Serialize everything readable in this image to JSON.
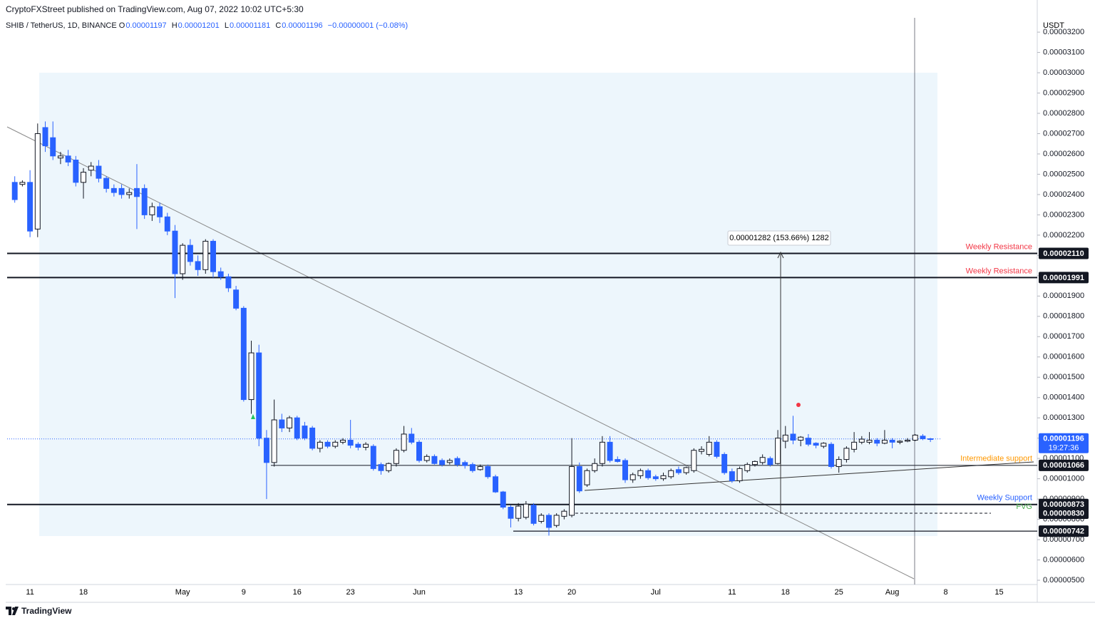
{
  "header": {
    "publisher": "CryptoFXStreet published on TradingView.com, Aug 07, 2022 10:02 UTC+5:30",
    "symbol": "SHIB / TetherUS, 1D, BINANCE",
    "ohlc": [
      {
        "key": "O",
        "value": "0.00001197"
      },
      {
        "key": "H",
        "value": "0.00001201"
      },
      {
        "key": "L",
        "value": "0.00001181"
      },
      {
        "key": "C",
        "value": "0.00001196"
      }
    ],
    "change": "−0.00000001 (−0.08%)"
  },
  "footer": "TradingView",
  "chart_data": {
    "type": "candlestick",
    "currency": "USDT",
    "categories": [
      null,
      null,
      "11",
      null,
      null,
      null,
      null,
      null,
      null,
      "18",
      null,
      null,
      null,
      null,
      null,
      null,
      null,
      null,
      null,
      null,
      null,
      null,
      "May",
      null,
      null,
      null,
      null,
      null,
      null,
      null,
      "9",
      null,
      null,
      null,
      null,
      null,
      null,
      "16",
      null,
      null,
      null,
      null,
      null,
      null,
      "23",
      null,
      null,
      null,
      null,
      null,
      null,
      null,
      null,
      "Jun",
      null,
      null,
      null,
      null,
      null,
      null,
      null,
      null,
      null,
      null,
      null,
      null,
      "13",
      null,
      null,
      null,
      null,
      null,
      null,
      "20",
      null,
      null,
      null,
      null,
      null,
      null,
      null,
      null,
      null,
      null,
      "Jul",
      null,
      null,
      null,
      null,
      null,
      null,
      null,
      null,
      null,
      "11",
      null,
      null,
      null,
      null,
      null,
      null,
      "18",
      null,
      null,
      null,
      null,
      null,
      null,
      "25",
      null,
      null,
      null,
      null,
      null,
      null,
      "Aug",
      null,
      null,
      null,
      null,
      null,
      null,
      "8",
      null,
      null,
      null,
      null,
      null,
      null,
      "15",
      null,
      null,
      null
    ],
    "ohlc": [
      [
        2.46e-05,
        2.49e-05,
        2.36e-05,
        2.375e-05
      ],
      [
        2.45e-05,
        2.47e-05,
        2.44e-05,
        2.46e-05
      ],
      [
        2.46e-05,
        2.52e-05,
        2.19e-05,
        2.22e-05
      ],
      [
        2.23e-05,
        2.75e-05,
        2.19e-05,
        2.7e-05
      ],
      [
        2.73e-05,
        2.76e-05,
        2.61e-05,
        2.64e-05
      ],
      [
        2.68e-05,
        2.76e-05,
        2.57e-05,
        2.59e-05
      ],
      [
        2.58e-05,
        2.61e-05,
        2.55e-05,
        2.59e-05
      ],
      [
        2.59e-05,
        2.62e-05,
        2.54e-05,
        2.56e-05
      ],
      [
        2.57e-05,
        2.59e-05,
        2.44e-05,
        2.46e-05
      ],
      [
        2.46e-05,
        2.53e-05,
        2.38e-05,
        2.51e-05
      ],
      [
        2.52e-05,
        2.56e-05,
        2.49e-05,
        2.54e-05
      ],
      [
        2.54e-05,
        2.57e-05,
        2.46e-05,
        2.48e-05
      ],
      [
        2.48e-05,
        2.49e-05,
        2.41e-05,
        2.43e-05
      ],
      [
        2.43e-05,
        2.45e-05,
        2.39e-05,
        2.41e-05
      ],
      [
        2.43e-05,
        2.45e-05,
        2.38e-05,
        2.4e-05
      ],
      [
        2.4e-05,
        2.43e-05,
        2.38e-05,
        2.41e-05
      ],
      [
        2.43e-05,
        2.55e-05,
        2.23e-05,
        2.39e-05
      ],
      [
        2.43e-05,
        2.45e-05,
        2.28e-05,
        2.3e-05
      ],
      [
        2.3e-05,
        2.36e-05,
        2.27e-05,
        2.34e-05
      ],
      [
        2.34e-05,
        2.36e-05,
        2.26e-05,
        2.29e-05
      ],
      [
        2.29e-05,
        2.31e-05,
        2.2e-05,
        2.22e-05
      ],
      [
        2.22e-05,
        2.25e-05,
        1.89e-05,
        2.01e-05
      ],
      [
        2.01e-05,
        2.16e-05,
        1.98e-05,
        2.15e-05
      ],
      [
        2.15e-05,
        2.18e-05,
        2.05e-05,
        2.07e-05
      ],
      [
        2.07e-05,
        2.1e-05,
        2e-05,
        2.03e-05
      ],
      [
        2.03e-05,
        2.18e-05,
        2.01e-05,
        2.17e-05
      ],
      [
        2.17e-05,
        2.18e-05,
        1.99e-05,
        2.02e-05
      ],
      [
        2.02e-05,
        2.04e-05,
        1.98e-05,
        1.995e-05
      ],
      [
        1.995e-05,
        2.01e-05,
        1.92e-05,
        1.94e-05
      ],
      [
        1.93e-05,
        1.95e-05,
        1.83e-05,
        1.84e-05
      ],
      [
        1.84e-05,
        1.85e-05,
        1.38e-05,
        1.39e-05
      ],
      [
        1.39e-05,
        1.68e-05,
        1.32e-05,
        1.62e-05
      ],
      [
        1.62e-05,
        1.66e-05,
        1.16e-05,
        1.2e-05
      ],
      [
        1.2e-05,
        1.24e-05,
        9e-06,
        1.08e-05
      ],
      [
        1.08e-05,
        1.39e-05,
        1.06e-05,
        1.29e-05
      ],
      [
        1.29e-05,
        1.32e-05,
        1.23e-05,
        1.25e-05
      ],
      [
        1.25e-05,
        1.31e-05,
        1.23e-05,
        1.3e-05
      ],
      [
        1.3e-05,
        1.31e-05,
        1.19e-05,
        1.2e-05
      ],
      [
        1.26e-05,
        1.28e-05,
        1.19e-05,
        1.2e-05
      ],
      [
        1.25e-05,
        1.26e-05,
        1.14e-05,
        1.15e-05
      ],
      [
        1.15e-05,
        1.19e-05,
        1.13e-05,
        1.18e-05
      ],
      [
        1.18e-05,
        1.19e-05,
        1.15e-05,
        1.16e-05
      ],
      [
        1.16e-05,
        1.19e-05,
        1.15e-05,
        1.18e-05
      ],
      [
        1.18e-05,
        1.2e-05,
        1.17e-05,
        1.19e-05
      ],
      [
        1.19e-05,
        1.29e-05,
        1.15e-05,
        1.165e-05
      ],
      [
        1.17e-05,
        1.18e-05,
        1.14e-05,
        1.155e-05
      ],
      [
        1.155e-05,
        1.18e-05,
        1.14e-05,
        1.17e-05
      ],
      [
        1.16e-05,
        1.17e-05,
        1.04e-05,
        1.05e-05
      ],
      [
        1.07e-05,
        1.08e-05,
        1.02e-05,
        1.04e-05
      ],
      [
        1.04e-05,
        1.08e-05,
        1.03e-05,
        1.075e-05
      ],
      [
        1.075e-05,
        1.15e-05,
        1.06e-05,
        1.14e-05
      ],
      [
        1.14e-05,
        1.26e-05,
        1.13e-05,
        1.22e-05
      ],
      [
        1.22e-05,
        1.25e-05,
        1.17e-05,
        1.18e-05
      ],
      [
        1.18e-05,
        1.19e-05,
        1.08e-05,
        1.09e-05
      ],
      [
        1.09e-05,
        1.12e-05,
        1.08e-05,
        1.11e-05
      ],
      [
        1.11e-05,
        1.12e-05,
        1.07e-05,
        1.075e-05
      ],
      [
        1.09e-05,
        1.1e-05,
        1.06e-05,
        1.07e-05
      ],
      [
        1.08e-05,
        1.1e-05,
        1.07e-05,
        1.09e-05
      ],
      [
        1.1e-05,
        1.11e-05,
        1.06e-05,
        1.07e-05
      ],
      [
        1.08e-05,
        1.09e-05,
        1.05e-05,
        1.065e-05
      ],
      [
        1.07e-05,
        1.08e-05,
        1.03e-05,
        1.04e-05
      ],
      [
        1.045e-05,
        1.07e-05,
        1.04e-05,
        1.06e-05
      ],
      [
        1.06e-05,
        1.07e-05,
        1e-05,
        1.01e-05
      ],
      [
        1.01e-05,
        1.02e-05,
        9.3e-06,
        9.35e-06
      ],
      [
        9.35e-06,
        9.4e-06,
        8.5e-06,
        8.6e-06
      ],
      [
        8.6e-06,
        8.7e-06,
        7.6e-06,
        8.05e-06
      ],
      [
        8.05e-06,
        8.8e-06,
        7.9e-06,
        8.65e-06
      ],
      [
        8.1e-06,
        8.9e-06,
        8e-06,
        8.75e-06
      ],
      [
        8.7e-06,
        8.8e-06,
        7.7e-06,
        7.8e-06
      ],
      [
        7.9e-06,
        8.3e-06,
        7.8e-06,
        8.2e-06
      ],
      [
        8.2e-06,
        8.3e-06,
        7.2e-06,
        7.6e-06
      ],
      [
        7.7e-06,
        8.3e-06,
        7.6e-06,
        8.2e-06
      ],
      [
        8.15e-06,
        8.5e-06,
        8e-06,
        8.4e-06
      ],
      [
        8.2e-06,
        1.2e-05,
        8.1e-06,
        1.06e-05
      ],
      [
        1.06e-05,
        1.08e-05,
        9.3e-06,
        9.4e-06
      ],
      [
        9.7e-06,
        1.05e-05,
        9.6e-06,
        1.04e-05
      ],
      [
        1.04e-05,
        1.1e-05,
        1.03e-05,
        1.075e-05
      ],
      [
        1.075e-05,
        1.21e-05,
        1.06e-05,
        1.18e-05
      ],
      [
        1.18e-05,
        1.21e-05,
        1.08e-05,
        1.09e-05
      ],
      [
        1.095e-05,
        1.11e-05,
        1.08e-05,
        1.085e-05
      ],
      [
        1.09e-05,
        1.1e-05,
        9.8e-06,
        9.95e-06
      ],
      [
        9.95e-06,
        1.03e-05,
        9.8e-06,
        1.02e-05
      ],
      [
        1.015e-05,
        1.05e-05,
        1e-05,
        1.04e-05
      ],
      [
        1.04e-05,
        1.05e-05,
        9.95e-06,
        1.005e-05
      ],
      [
        1.01e-05,
        1.02e-05,
        9.9e-06,
        1e-05
      ],
      [
        1e-05,
        1.03e-05,
        9.9e-06,
        1.015e-05
      ],
      [
        1.01e-05,
        1.05e-05,
        1e-05,
        1.04e-05
      ],
      [
        1.045e-05,
        1.06e-05,
        1.02e-05,
        1.03e-05
      ],
      [
        1.03e-05,
        1.06e-05,
        1.02e-05,
        1.055e-05
      ],
      [
        1.04e-05,
        1.15e-05,
        1.03e-05,
        1.14e-05
      ],
      [
        1.135e-05,
        1.16e-05,
        1.12e-05,
        1.145e-05
      ],
      [
        1.12e-05,
        1.21e-05,
        1.11e-05,
        1.18e-05
      ],
      [
        1.18e-05,
        1.19e-05,
        1.1e-05,
        1.11e-05
      ],
      [
        1.12e-05,
        1.13e-05,
        1.02e-05,
        1.03e-05
      ],
      [
        1.035e-05,
        1.05e-05,
        9.8e-06,
        9.9e-06
      ],
      [
        9.9e-06,
        1.06e-05,
        9.8e-06,
        1.05e-05
      ],
      [
        1.04e-05,
        1.08e-05,
        1.03e-05,
        1.07e-05
      ],
      [
        1.07e-05,
        1.09e-05,
        1.06e-05,
        1.085e-05
      ],
      [
        1.08e-05,
        1.12e-05,
        1.07e-05,
        1.105e-05
      ],
      [
        1.1e-05,
        1.11e-05,
        1.06e-05,
        1.07e-05
      ],
      [
        1.075e-05,
        1.24e-05,
        1.07e-05,
        1.2e-05
      ],
      [
        1.185e-05,
        1.26e-05,
        1.15e-05,
        1.215e-05
      ],
      [
        1.22e-05,
        1.31e-05,
        1.17e-05,
        1.19e-05
      ],
      [
        1.19e-05,
        1.21e-05,
        1.16e-05,
        1.205e-05
      ],
      [
        1.2e-05,
        1.22e-05,
        1.16e-05,
        1.17e-05
      ],
      [
        1.175e-05,
        1.18e-05,
        1.15e-05,
        1.165e-05
      ],
      [
        1.16e-05,
        1.18e-05,
        1.15e-05,
        1.175e-05
      ],
      [
        1.17e-05,
        1.18e-05,
        1.05e-05,
        1.06e-05
      ],
      [
        1.06e-05,
        1.11e-05,
        1.03e-05,
        1.095e-05
      ],
      [
        1.095e-05,
        1.16e-05,
        1.08e-05,
        1.15e-05
      ],
      [
        1.145e-05,
        1.23e-05,
        1.13e-05,
        1.18e-05
      ],
      [
        1.18e-05,
        1.21e-05,
        1.17e-05,
        1.195e-05
      ],
      [
        1.18e-05,
        1.23e-05,
        1.17e-05,
        1.19e-05
      ],
      [
        1.19e-05,
        1.2e-05,
        1.16e-05,
        1.175e-05
      ],
      [
        1.175e-05,
        1.24e-05,
        1.17e-05,
        1.19e-05
      ],
      [
        1.19e-05,
        1.2e-05,
        1.15e-05,
        1.18e-05
      ],
      [
        1.18e-05,
        1.19e-05,
        1.17e-05,
        1.185e-05
      ],
      [
        1.185e-05,
        1.2e-05,
        1.18e-05,
        1.19e-05
      ],
      [
        1.19e-05,
        1.22e-05,
        1.185e-05,
        1.215e-05
      ],
      [
        1.21e-05,
        1.22e-05,
        1.19e-05,
        1.197e-05
      ],
      [
        1.197e-05,
        1.201e-05,
        1.181e-05,
        1.196e-05
      ],
      null,
      null,
      null,
      null,
      null,
      null,
      null,
      null,
      null,
      null,
      null
    ],
    "up_color": "#ffffff",
    "down_color": "#2962ff",
    "ylim": [
      4.79e-06,
      3.253e-05
    ],
    "yticks": [
      {
        "value": 5e-06,
        "label": "0.00000500"
      },
      {
        "value": 6e-06,
        "label": "0.00000600"
      },
      {
        "value": 7e-06,
        "label": "0.00000700"
      },
      {
        "value": 8e-06,
        "label": "0.00000800"
      },
      {
        "value": 9e-06,
        "label": "0.00000900"
      },
      {
        "value": 1e-05,
        "label": "0.00001000"
      },
      {
        "value": 1.1e-05,
        "label": "0.00001100"
      },
      {
        "value": 1.2e-05,
        "label": "0.00001200"
      },
      {
        "value": 1.3e-05,
        "label": "0.00001300"
      },
      {
        "value": 1.4e-05,
        "label": "0.00001400"
      },
      {
        "value": 1.5e-05,
        "label": "0.00001500"
      },
      {
        "value": 1.6e-05,
        "label": "0.00001600"
      },
      {
        "value": 1.7e-05,
        "label": "0.00001700"
      },
      {
        "value": 1.8e-05,
        "label": "0.00001800"
      },
      {
        "value": 1.9e-05,
        "label": "0.00001900"
      },
      {
        "value": 2e-05,
        "label": "0.00002000"
      },
      {
        "value": 2.1e-05,
        "label": "0.00002100"
      },
      {
        "value": 2.2e-05,
        "label": "0.00002200"
      },
      {
        "value": 2.3e-05,
        "label": "0.00002300"
      },
      {
        "value": 2.4e-05,
        "label": "0.00002400"
      },
      {
        "value": 2.5e-05,
        "label": "0.00002500"
      },
      {
        "value": 2.6e-05,
        "label": "0.00002600"
      },
      {
        "value": 2.7e-05,
        "label": "0.00002700"
      },
      {
        "value": 2.8e-05,
        "label": "0.00002800"
      },
      {
        "value": 2.9e-05,
        "label": "0.00002900"
      },
      {
        "value": 3e-05,
        "label": "0.00003000"
      },
      {
        "value": 3.1e-05,
        "label": "0.00003100"
      },
      {
        "value": 3.2e-05,
        "label": "0.00003200"
      }
    ],
    "levels": [
      {
        "value": 2.11e-05,
        "label": "0.00002110",
        "name": "Weekly Resistance",
        "name_color": "#f23645"
      },
      {
        "value": 1.991e-05,
        "label": "0.00001991",
        "name": "Weekly Resistance",
        "name_color": "#f23645"
      },
      {
        "value": 1.066e-05,
        "label": "0.00001066",
        "name": "Intermediate support",
        "name_color": "#ff9800"
      },
      {
        "value": 8.73e-06,
        "label": "0.00000873",
        "name": "Weekly Support",
        "name_color": "#2962ff"
      },
      {
        "value": 8.3e-06,
        "label": "0.00000830",
        "name": "FVG",
        "name_color": "#4caf50"
      },
      {
        "value": 7.42e-06,
        "label": "0.00000742"
      }
    ],
    "last_price": {
      "value": 1.196e-05,
      "label": "0.00001196",
      "countdown": "19:27:36",
      "color": "#2962ff"
    },
    "measure_label": "0.00001282 (153.66%) 1282"
  }
}
